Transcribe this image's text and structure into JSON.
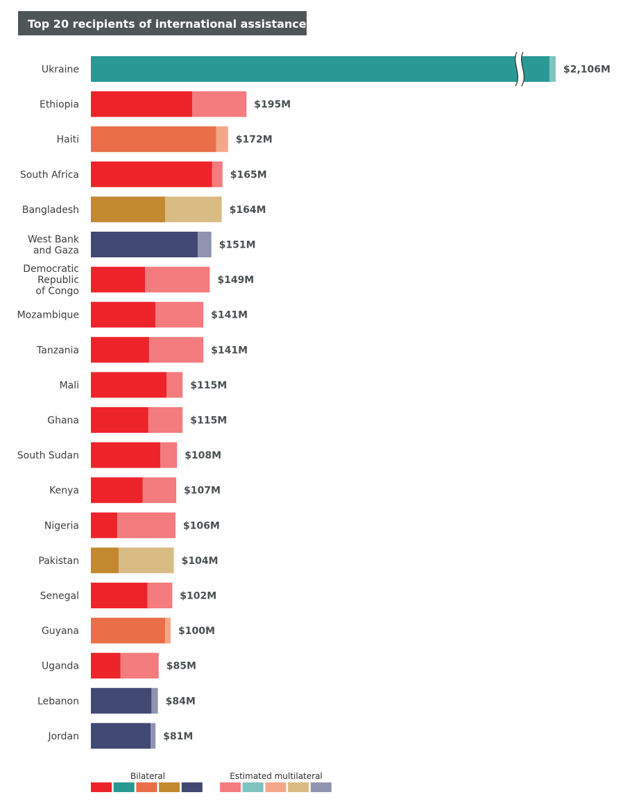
{
  "colors": {
    "red": {
      "bilateral": "#ee242b",
      "multilateral": "#f47b7e"
    },
    "teal": {
      "bilateral": "#2a9994",
      "multilateral": "#7fc3bf"
    },
    "orange": {
      "bilateral": "#ea6e47",
      "multilateral": "#f4a789"
    },
    "gold": {
      "bilateral": "#c2892e",
      "multilateral": "#d9bb84"
    },
    "navy": {
      "bilateral": "#424874",
      "multilateral": "#9194b0"
    }
  },
  "chart_data": {
    "type": "bar",
    "orientation": "horizontal",
    "stacked": true,
    "title": "Top 20 recipients of international assistance",
    "units": "$M",
    "axis_break": "Ukraine bar is truncated with a break mark",
    "legend": {
      "placement": "bottom",
      "bilateral_label": "Bilateral",
      "multilateral_label": "Estimated multilateral",
      "color_order": [
        "red",
        "teal",
        "orange",
        "gold",
        "navy"
      ]
    },
    "bars": [
      {
        "country": [
          "Ukraine"
        ],
        "total": 2106,
        "bilateral": 2078,
        "multilateral": 28,
        "total_label": "$2,106M",
        "color": "teal"
      },
      {
        "country": [
          "Ethiopia"
        ],
        "total": 195,
        "bilateral": 127,
        "multilateral": 68,
        "total_label": "$195M",
        "color": "red"
      },
      {
        "country": [
          "Haiti"
        ],
        "total": 172,
        "bilateral": 157,
        "multilateral": 15,
        "total_label": "$172M",
        "color": "orange"
      },
      {
        "country": [
          "South Africa"
        ],
        "total": 165,
        "bilateral": 152,
        "multilateral": 13,
        "total_label": "$165M",
        "color": "red"
      },
      {
        "country": [
          "Bangladesh"
        ],
        "total": 164,
        "bilateral": 93,
        "multilateral": 71,
        "total_label": "$164M",
        "color": "gold"
      },
      {
        "country": [
          "West Bank",
          "and Gaza"
        ],
        "total": 151,
        "bilateral": 134,
        "multilateral": 17,
        "total_label": "$151M",
        "color": "navy"
      },
      {
        "country": [
          "Democratic",
          "Republic",
          "of Congo"
        ],
        "total": 149,
        "bilateral": 68,
        "multilateral": 81,
        "total_label": "$149M",
        "color": "red"
      },
      {
        "country": [
          "Mozambique"
        ],
        "total": 141,
        "bilateral": 81,
        "multilateral": 60,
        "total_label": "$141M",
        "color": "red"
      },
      {
        "country": [
          "Tanzania"
        ],
        "total": 141,
        "bilateral": 73,
        "multilateral": 68,
        "total_label": "$141M",
        "color": "red"
      },
      {
        "country": [
          "Mali"
        ],
        "total": 115,
        "bilateral": 95,
        "multilateral": 20,
        "total_label": "$115M",
        "color": "red"
      },
      {
        "country": [
          "Ghana"
        ],
        "total": 115,
        "bilateral": 72,
        "multilateral": 43,
        "total_label": "$115M",
        "color": "red"
      },
      {
        "country": [
          "South Sudan"
        ],
        "total": 108,
        "bilateral": 87,
        "multilateral": 21,
        "total_label": "$108M",
        "color": "red"
      },
      {
        "country": [
          "Kenya"
        ],
        "total": 107,
        "bilateral": 65,
        "multilateral": 42,
        "total_label": "$107M",
        "color": "red"
      },
      {
        "country": [
          "Nigeria"
        ],
        "total": 106,
        "bilateral": 33,
        "multilateral": 73,
        "total_label": "$106M",
        "color": "red"
      },
      {
        "country": [
          "Pakistan"
        ],
        "total": 104,
        "bilateral": 35,
        "multilateral": 69,
        "total_label": "$104M",
        "color": "gold"
      },
      {
        "country": [
          "Senegal"
        ],
        "total": 102,
        "bilateral": 71,
        "multilateral": 31,
        "total_label": "$102M",
        "color": "red"
      },
      {
        "country": [
          "Guyana"
        ],
        "total": 100,
        "bilateral": 93,
        "multilateral": 7,
        "total_label": "$100M",
        "color": "orange"
      },
      {
        "country": [
          "Uganda"
        ],
        "total": 85,
        "bilateral": 37,
        "multilateral": 48,
        "total_label": "$85M",
        "color": "red"
      },
      {
        "country": [
          "Lebanon"
        ],
        "total": 84,
        "bilateral": 76,
        "multilateral": 8,
        "total_label": "$84M",
        "color": "navy"
      },
      {
        "country": [
          "Jordan"
        ],
        "total": 81,
        "bilateral": 75,
        "multilateral": 6,
        "total_label": "$81M",
        "color": "navy"
      }
    ]
  }
}
